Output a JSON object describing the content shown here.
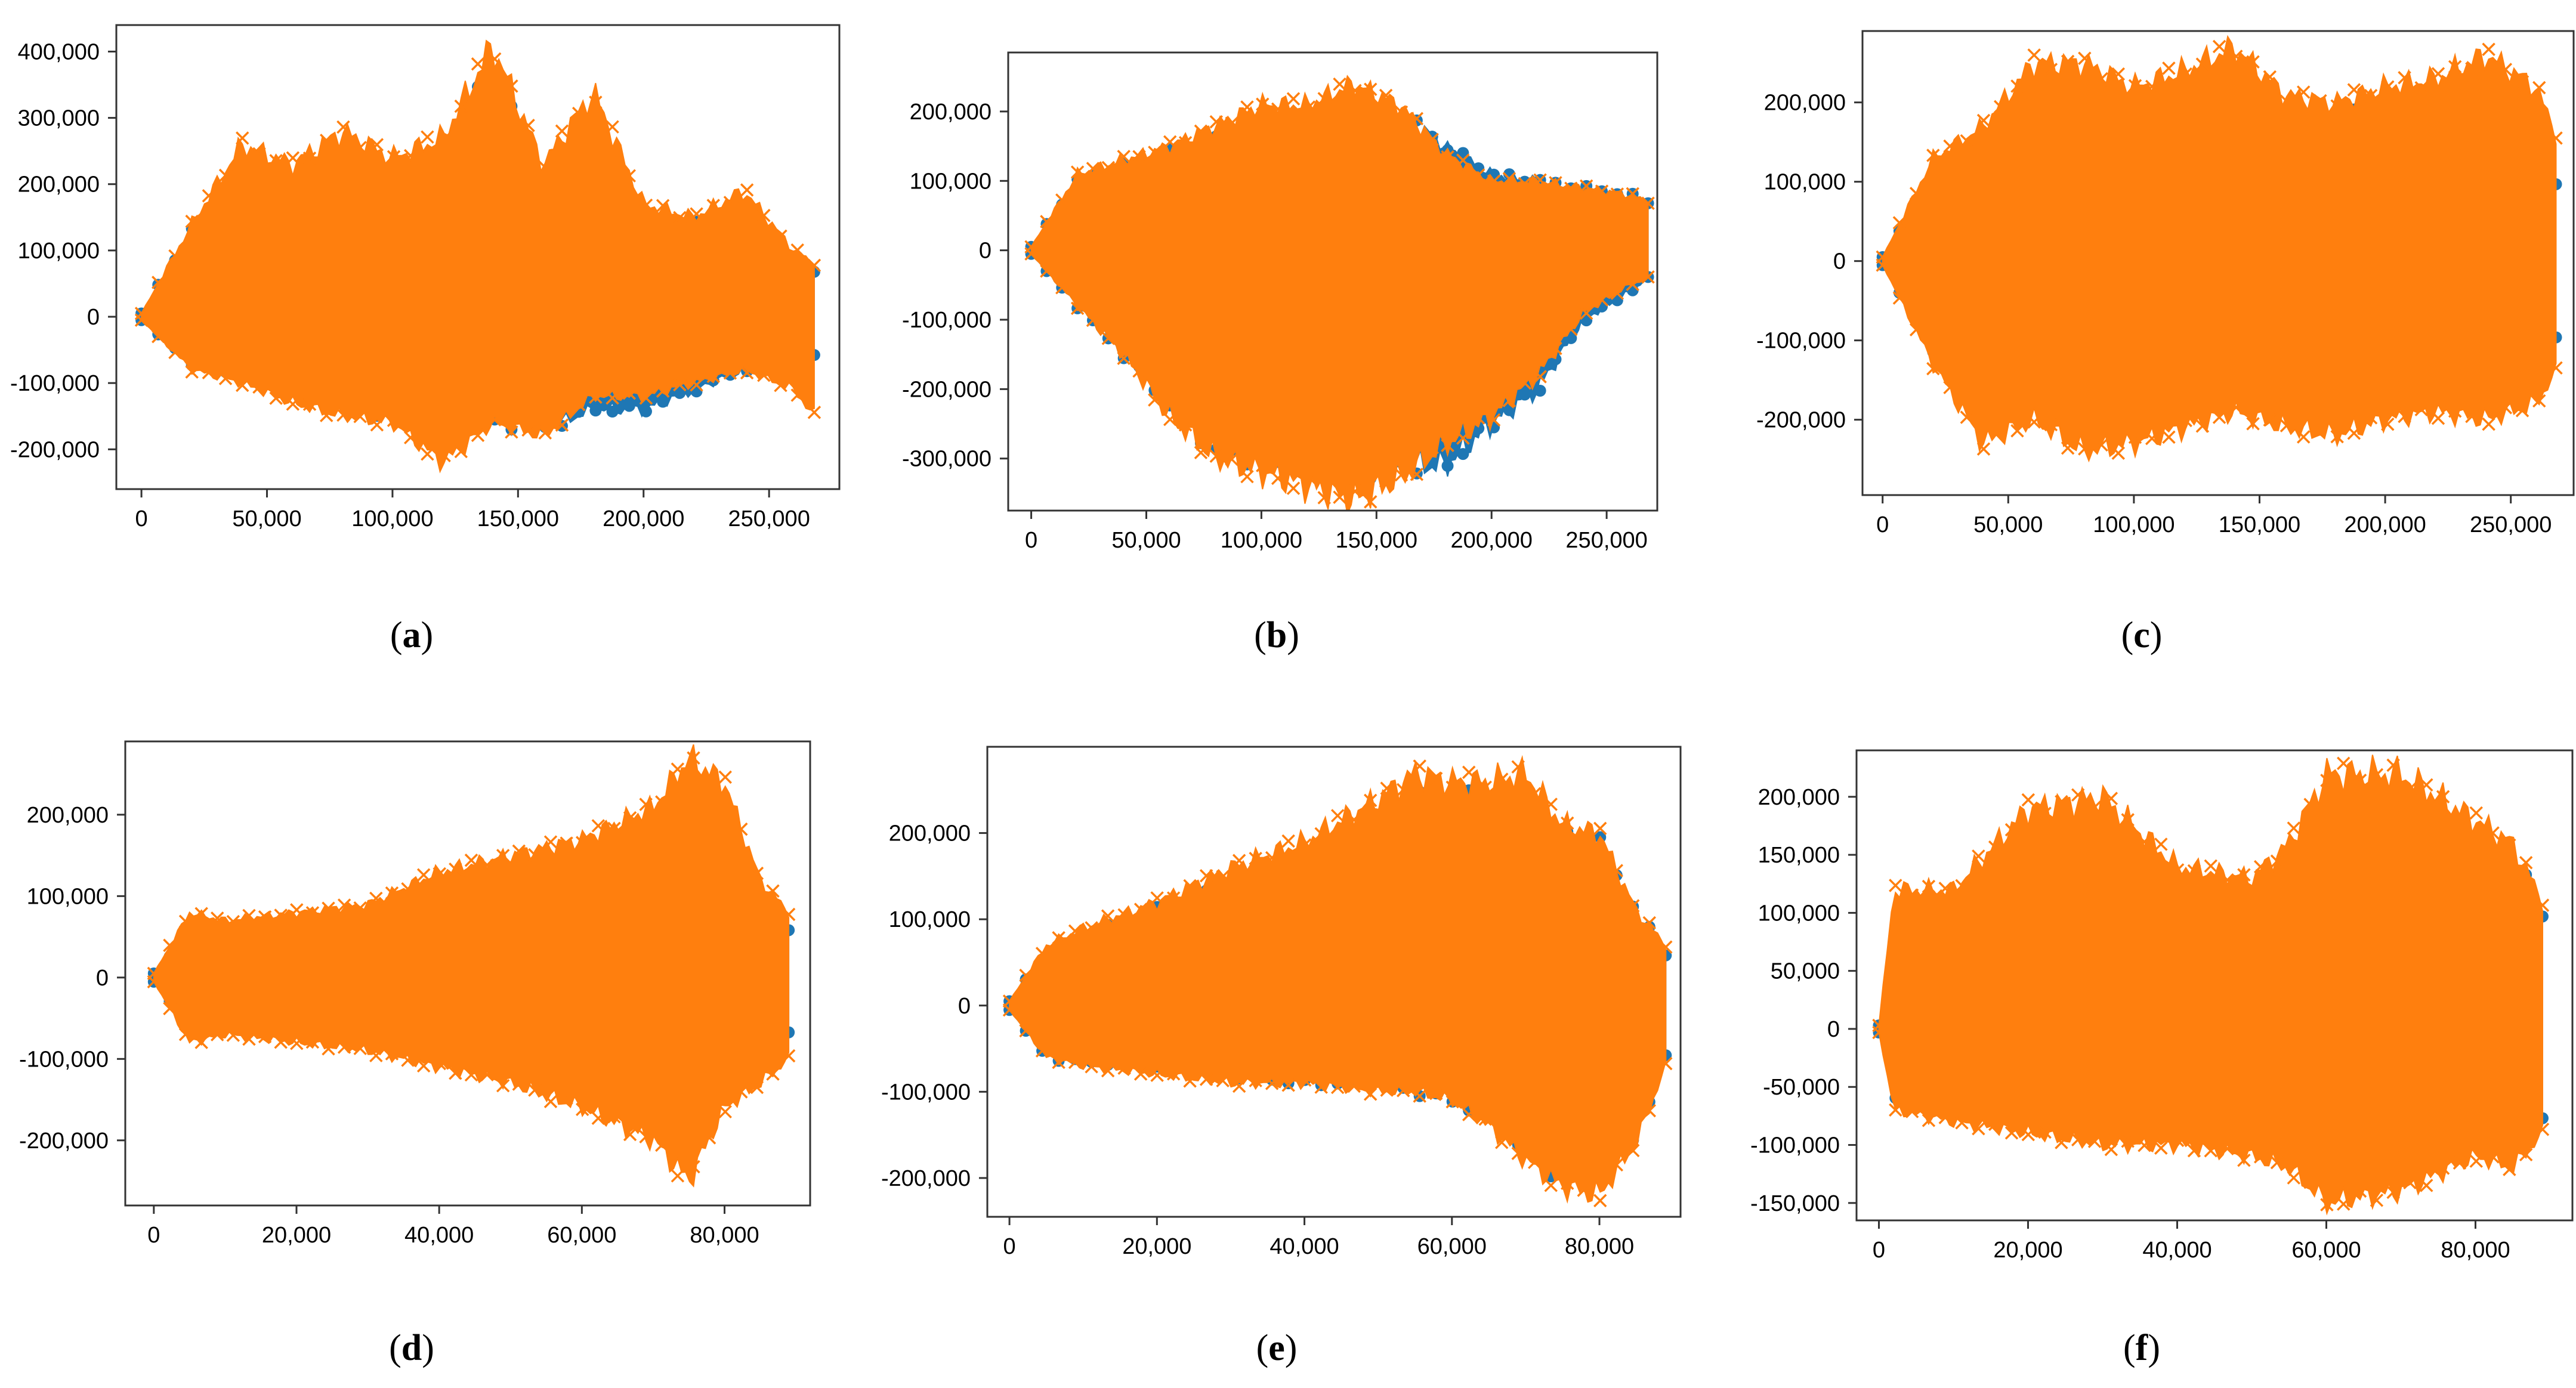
{
  "figure": {
    "colors": {
      "series_blue": "#1f77b4",
      "series_orange": "#ff7f0e",
      "axis": "#333333",
      "background": "#ffffff"
    }
  },
  "chart_data": [
    {
      "id": "a",
      "caption": "a",
      "type": "scatter",
      "title": "",
      "xlabel": "",
      "ylabel": "",
      "xlim": [
        -10000,
        278000
      ],
      "ylim": [
        -260000,
        440000
      ],
      "x_ticks": [
        0,
        50000,
        100000,
        150000,
        200000,
        250000
      ],
      "x_tick_labels": [
        "0",
        "50,000",
        "100,000",
        "150,000",
        "200,000",
        "250,000"
      ],
      "y_ticks": [
        -200000,
        -100000,
        0,
        100000,
        200000,
        300000,
        400000
      ],
      "y_tick_labels": [
        "-200,000",
        "-100,000",
        "0",
        "100,000",
        "200,000",
        "300,000",
        "400,000"
      ],
      "series": [
        {
          "name": "blue",
          "marker": "circle",
          "color": "#1f77b4",
          "x": [
            0,
            20000,
            40000,
            60000,
            80000,
            100000,
            120000,
            140000,
            160000,
            180000,
            200000,
            220000,
            240000,
            260000,
            268000
          ],
          "upper": [
            5000,
            130000,
            130000,
            170000,
            200000,
            200000,
            230000,
            380000,
            200000,
            290000,
            150000,
            140000,
            150000,
            90000,
            70000
          ],
          "lower": [
            -5000,
            -70000,
            -90000,
            -110000,
            -130000,
            -150000,
            -160000,
            -160000,
            -170000,
            -140000,
            -140000,
            -110000,
            -80000,
            -70000,
            -60000
          ]
        },
        {
          "name": "orange",
          "marker": "x",
          "color": "#ff7f0e",
          "x": [
            0,
            20000,
            40000,
            60000,
            80000,
            100000,
            120000,
            140000,
            160000,
            180000,
            200000,
            220000,
            240000,
            260000,
            268000
          ],
          "upper": [
            5000,
            140000,
            260000,
            230000,
            280000,
            240000,
            270000,
            410000,
            230000,
            340000,
            170000,
            150000,
            190000,
            100000,
            80000
          ],
          "lower": [
            -5000,
            -80000,
            -100000,
            -130000,
            -150000,
            -160000,
            -220000,
            -160000,
            -180000,
            -120000,
            -120000,
            -100000,
            -80000,
            -110000,
            -150000
          ]
        }
      ]
    },
    {
      "id": "b",
      "caption": "b",
      "type": "scatter",
      "title": "",
      "xlabel": "",
      "ylabel": "",
      "xlim": [
        -10000,
        272000
      ],
      "ylim": [
        -375000,
        285000
      ],
      "x_ticks": [
        0,
        50000,
        100000,
        150000,
        200000,
        250000
      ],
      "x_tick_labels": [
        "0",
        "50,000",
        "100,000",
        "150,000",
        "200,000",
        "250,000"
      ],
      "y_ticks": [
        -300000,
        -200000,
        -100000,
        0,
        100000,
        200000
      ],
      "y_tick_labels": [
        "-300,000",
        "-200,000",
        "-100,000",
        "0",
        "100,000",
        "200,000"
      ],
      "series": [
        {
          "name": "blue",
          "marker": "circle",
          "color": "#1f77b4",
          "x": [
            0,
            20000,
            40000,
            60000,
            80000,
            100000,
            120000,
            140000,
            160000,
            180000,
            200000,
            220000,
            240000,
            260000,
            268000
          ],
          "upper": [
            5000,
            100000,
            120000,
            140000,
            160000,
            180000,
            190000,
            210000,
            200000,
            150000,
            110000,
            100000,
            90000,
            80000,
            70000
          ],
          "lower": [
            -5000,
            -80000,
            -150000,
            -220000,
            -290000,
            -300000,
            -310000,
            -320000,
            -310000,
            -310000,
            -250000,
            -200000,
            -100000,
            -60000,
            -40000
          ]
        },
        {
          "name": "orange",
          "marker": "x",
          "color": "#ff7f0e",
          "x": [
            0,
            20000,
            40000,
            60000,
            80000,
            100000,
            120000,
            140000,
            160000,
            180000,
            200000,
            220000,
            240000,
            260000,
            268000
          ],
          "upper": [
            5000,
            110000,
            130000,
            150000,
            180000,
            210000,
            210000,
            240000,
            210000,
            140000,
            100000,
            100000,
            90000,
            80000,
            70000
          ],
          "lower": [
            -5000,
            -80000,
            -150000,
            -240000,
            -300000,
            -320000,
            -340000,
            -360000,
            -330000,
            -280000,
            -240000,
            -180000,
            -90000,
            -50000,
            -40000
          ]
        }
      ]
    },
    {
      "id": "c",
      "caption": "c",
      "type": "scatter",
      "title": "",
      "xlabel": "",
      "ylabel": "",
      "xlim": [
        -8000,
        275000
      ],
      "ylim": [
        -295000,
        290000
      ],
      "x_ticks": [
        0,
        50000,
        100000,
        150000,
        200000,
        250000
      ],
      "x_tick_labels": [
        "0",
        "50,000",
        "100,000",
        "150,000",
        "200,000",
        "250,000"
      ],
      "y_ticks": [
        -200000,
        -100000,
        0,
        100000,
        200000
      ],
      "y_tick_labels": [
        "-200,000",
        "-100,000",
        "0",
        "100,000",
        "200,000"
      ],
      "series": [
        {
          "name": "blue",
          "marker": "circle",
          "color": "#1f77b4",
          "x": [
            0,
            20000,
            40000,
            60000,
            80000,
            100000,
            120000,
            140000,
            160000,
            180000,
            200000,
            220000,
            240000,
            260000,
            268000
          ],
          "upper": [
            5000,
            100000,
            150000,
            170000,
            180000,
            170000,
            170000,
            180000,
            160000,
            180000,
            190000,
            160000,
            150000,
            120000,
            100000
          ],
          "lower": [
            -5000,
            -110000,
            -120000,
            -130000,
            -140000,
            -130000,
            -130000,
            -140000,
            -150000,
            -170000,
            -150000,
            -130000,
            -120000,
            -110000,
            -100000
          ]
        },
        {
          "name": "orange",
          "marker": "x",
          "color": "#ff7f0e",
          "x": [
            0,
            20000,
            40000,
            60000,
            80000,
            100000,
            120000,
            140000,
            160000,
            180000,
            200000,
            220000,
            240000,
            260000,
            268000
          ],
          "upper": [
            5000,
            130000,
            170000,
            250000,
            250000,
            220000,
            240000,
            270000,
            210000,
            200000,
            220000,
            230000,
            260000,
            220000,
            160000
          ],
          "lower": [
            -5000,
            -130000,
            -230000,
            -200000,
            -240000,
            -230000,
            -210000,
            -190000,
            -210000,
            -220000,
            -200000,
            -190000,
            -200000,
            -180000,
            -140000
          ]
        }
      ]
    },
    {
      "id": "d",
      "caption": "d",
      "type": "scatter",
      "title": "",
      "xlabel": "",
      "ylabel": "",
      "xlim": [
        -4000,
        92000
      ],
      "ylim": [
        -280000,
        290000
      ],
      "x_ticks": [
        0,
        20000,
        40000,
        60000,
        80000
      ],
      "x_tick_labels": [
        "0",
        "20,000",
        "40,000",
        "60,000",
        "80,000"
      ],
      "y_ticks": [
        -200000,
        -100000,
        0,
        100000,
        200000
      ],
      "y_tick_labels": [
        "-200,000",
        "-100,000",
        "0",
        "100,000",
        "200,000"
      ],
      "series": [
        {
          "name": "blue",
          "marker": "circle",
          "color": "#1f77b4",
          "x": [
            0,
            5000,
            10000,
            20000,
            30000,
            40000,
            50000,
            60000,
            70000,
            75000,
            80000,
            85000,
            89000
          ],
          "upper": [
            5000,
            50000,
            55000,
            60000,
            70000,
            90000,
            110000,
            130000,
            160000,
            170000,
            150000,
            100000,
            60000
          ],
          "lower": [
            -5000,
            -60000,
            -55000,
            -60000,
            -70000,
            -80000,
            -100000,
            -130000,
            -160000,
            -200000,
            -130000,
            -120000,
            -70000
          ]
        },
        {
          "name": "orange",
          "marker": "x",
          "color": "#ff7f0e",
          "x": [
            0,
            5000,
            10000,
            20000,
            30000,
            40000,
            50000,
            60000,
            70000,
            75000,
            80000,
            85000,
            89000
          ],
          "upper": [
            5000,
            80000,
            70000,
            80000,
            90000,
            130000,
            150000,
            170000,
            210000,
            270000,
            240000,
            120000,
            80000
          ],
          "lower": [
            -5000,
            -80000,
            -70000,
            -80000,
            -90000,
            -110000,
            -130000,
            -160000,
            -200000,
            -250000,
            -160000,
            -130000,
            -100000
          ]
        }
      ]
    },
    {
      "id": "e",
      "caption": "e",
      "type": "scatter",
      "title": "",
      "xlabel": "",
      "ylabel": "",
      "xlim": [
        -3000,
        91000
      ],
      "ylim": [
        -245000,
        300000
      ],
      "x_ticks": [
        0,
        20000,
        40000,
        60000,
        80000
      ],
      "x_tick_labels": [
        "0",
        "20,000",
        "40,000",
        "60,000",
        "80,000"
      ],
      "y_ticks": [
        -200000,
        -100000,
        0,
        100000,
        200000
      ],
      "y_tick_labels": [
        "-200,000",
        "-100,000",
        "0",
        "100,000",
        "200,000"
      ],
      "series": [
        {
          "name": "blue",
          "marker": "circle",
          "color": "#1f77b4",
          "x": [
            0,
            5000,
            10000,
            20000,
            30000,
            40000,
            50000,
            55000,
            60000,
            65000,
            70000,
            75000,
            80000,
            85000,
            89000
          ],
          "upper": [
            5000,
            60000,
            80000,
            110000,
            140000,
            170000,
            210000,
            240000,
            240000,
            240000,
            190000,
            200000,
            190000,
            110000,
            60000
          ],
          "lower": [
            -5000,
            -60000,
            -65000,
            -70000,
            -80000,
            -90000,
            -90000,
            -100000,
            -110000,
            -130000,
            -170000,
            -200000,
            -190000,
            -150000,
            -60000
          ]
        },
        {
          "name": "orange",
          "marker": "x",
          "color": "#ff7f0e",
          "x": [
            0,
            5000,
            10000,
            20000,
            30000,
            40000,
            50000,
            55000,
            60000,
            65000,
            70000,
            75000,
            80000,
            85000,
            89000
          ],
          "upper": [
            5000,
            70000,
            90000,
            120000,
            160000,
            190000,
            240000,
            270000,
            260000,
            260000,
            270000,
            210000,
            200000,
            110000,
            70000
          ],
          "lower": [
            -5000,
            -60000,
            -70000,
            -80000,
            -90000,
            -90000,
            -100000,
            -100000,
            -110000,
            -140000,
            -180000,
            -210000,
            -220000,
            -160000,
            -70000
          ]
        }
      ]
    },
    {
      "id": "f",
      "caption": "f",
      "type": "scatter",
      "title": "",
      "xlabel": "",
      "ylabel": "",
      "xlim": [
        -3000,
        93000
      ],
      "ylim": [
        -165000,
        240000
      ],
      "x_ticks": [
        0,
        20000,
        40000,
        60000,
        80000
      ],
      "x_tick_labels": [
        "0",
        "20,000",
        "40,000",
        "60,000",
        "80,000"
      ],
      "y_ticks": [
        -150000,
        -100000,
        -50000,
        0,
        50000,
        100000,
        150000,
        200000
      ],
      "y_tick_labels": [
        "-150,000",
        "-100,000",
        "-50,000",
        "0",
        "50,000",
        "100,000",
        "150,000",
        "200,000"
      ],
      "series": [
        {
          "name": "blue",
          "marker": "circle",
          "color": "#1f77b4",
          "x": [
            0,
            2000,
            10000,
            20000,
            30000,
            40000,
            50000,
            55000,
            60000,
            70000,
            80000,
            85000,
            89000
          ],
          "upper": [
            3000,
            60000,
            95000,
            110000,
            125000,
            120000,
            120000,
            110000,
            140000,
            150000,
            160000,
            150000,
            100000
          ],
          "lower": [
            -3000,
            -60000,
            -60000,
            -65000,
            -70000,
            -75000,
            -80000,
            -80000,
            -85000,
            -80000,
            -90000,
            -85000,
            -80000
          ]
        },
        {
          "name": "orange",
          "marker": "x",
          "color": "#ff7f0e",
          "x": [
            0,
            2000,
            10000,
            20000,
            30000,
            40000,
            50000,
            55000,
            60000,
            70000,
            80000,
            85000,
            89000
          ],
          "upper": [
            3000,
            120000,
            120000,
            190000,
            200000,
            140000,
            130000,
            160000,
            220000,
            220000,
            180000,
            160000,
            110000
          ],
          "lower": [
            -3000,
            -70000,
            -80000,
            -90000,
            -100000,
            -100000,
            -110000,
            -120000,
            -150000,
            -140000,
            -110000,
            -120000,
            -90000
          ]
        }
      ]
    }
  ]
}
